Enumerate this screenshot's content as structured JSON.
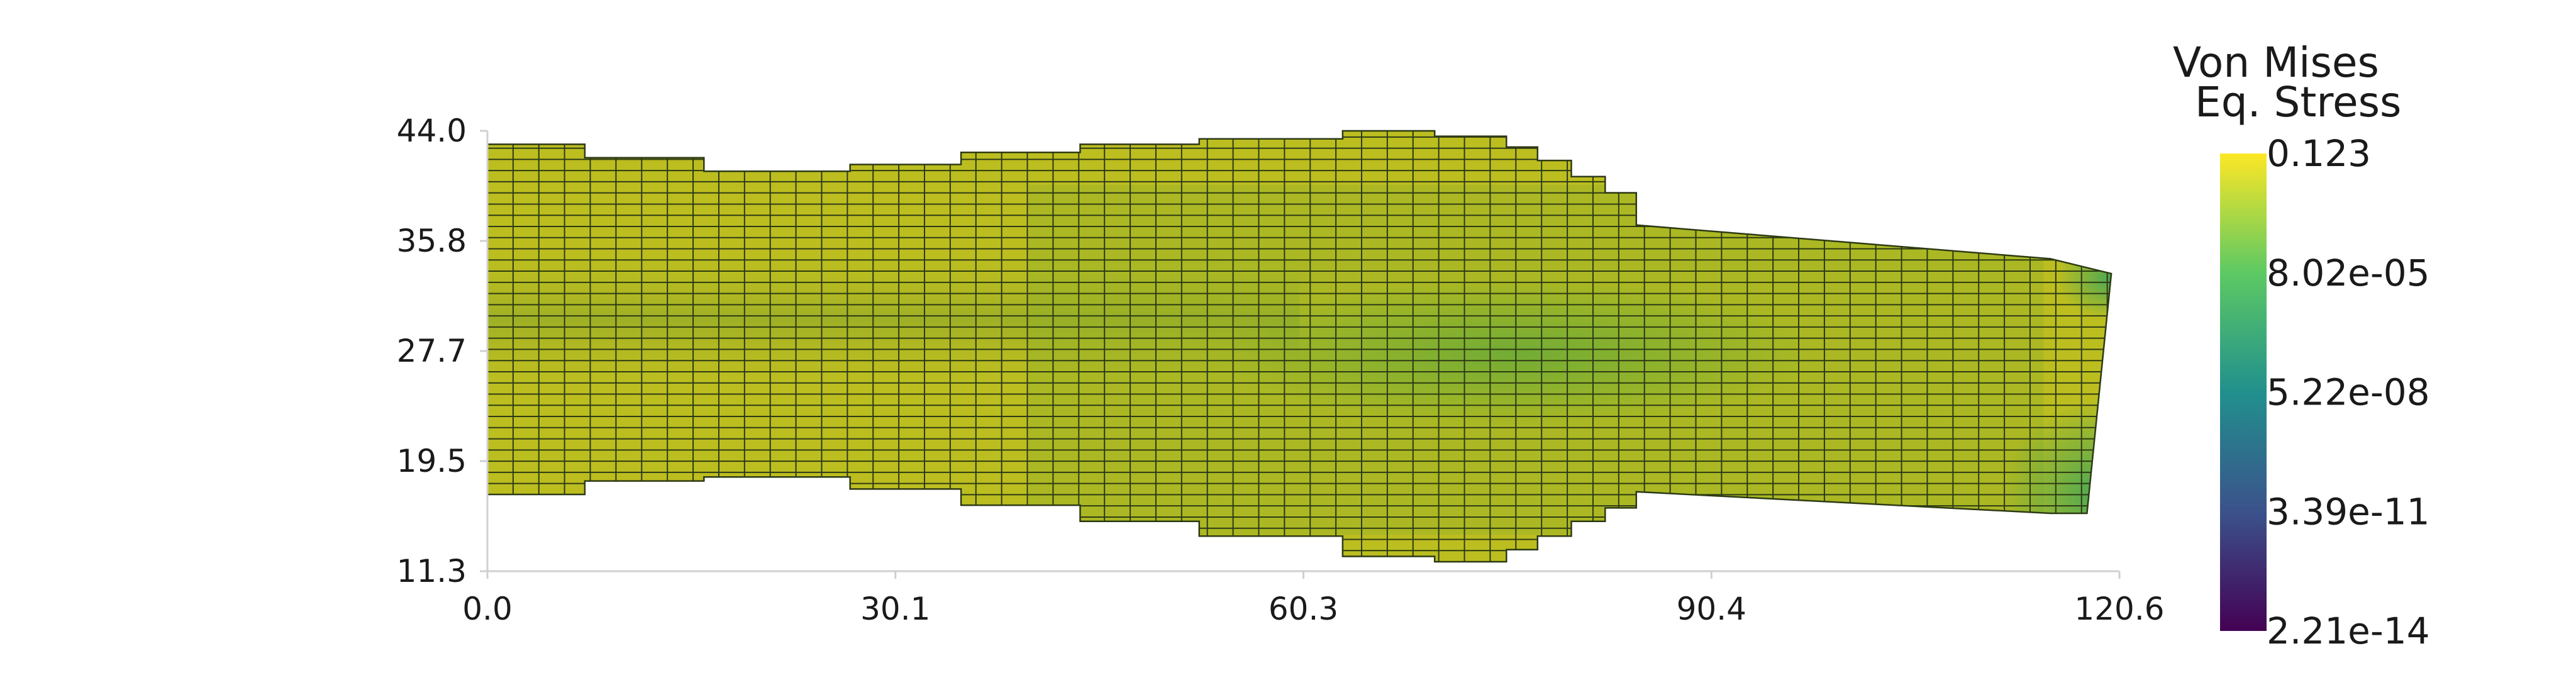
{
  "chart_data": {
    "type": "heatmap",
    "title": "",
    "colorbar": {
      "title_lines": [
        "Von Mises",
        "Eq. Stress"
      ],
      "tick_labels": [
        "0.123",
        "8.02e-05",
        "5.22e-08",
        "3.39e-11",
        "2.21e-14"
      ],
      "scale": "log",
      "colormap": [
        "#440154",
        "#3b528b",
        "#21908d",
        "#5dc963",
        "#fde725"
      ]
    },
    "x_axis": {
      "ticks": [
        "0.0",
        "30.1",
        "60.3",
        "90.4",
        "120.6"
      ],
      "range": [
        0.0,
        120.6
      ]
    },
    "y_axis": {
      "ticks": [
        "11.3",
        "19.5",
        "27.7",
        "35.8",
        "44.0"
      ],
      "range": [
        11.3,
        44.0
      ]
    },
    "mesh": {
      "element_width": 1.9,
      "element_height": 0.83,
      "outline_color": "#2d3a14",
      "segments": [
        {
          "x0": 0.0,
          "x1": 7.2,
          "y_bottom": 17.0,
          "y_top": 43.0
        },
        {
          "x0": 7.2,
          "x1": 16.0,
          "y_bottom": 18.0,
          "y_top": 42.0
        },
        {
          "x0": 16.0,
          "x1": 26.8,
          "y_bottom": 18.3,
          "y_top": 41.0
        },
        {
          "x0": 26.8,
          "x1": 35.0,
          "y_bottom": 17.4,
          "y_top": 41.5
        },
        {
          "x0": 35.0,
          "x1": 43.8,
          "y_bottom": 16.2,
          "y_top": 42.4
        },
        {
          "x0": 43.8,
          "x1": 52.6,
          "y_bottom": 15.0,
          "y_top": 43.0
        },
        {
          "x0": 52.6,
          "x1": 63.2,
          "y_bottom": 13.9,
          "y_top": 43.4
        },
        {
          "x0": 63.2,
          "x1": 70.0,
          "y_bottom": 12.4,
          "y_top": 44.0
        },
        {
          "x0": 70.0,
          "x1": 75.3,
          "y_bottom": 12.0,
          "y_top": 43.6
        },
        {
          "x0": 75.3,
          "x1": 77.6,
          "y_bottom": 12.9,
          "y_top": 42.8
        },
        {
          "x0": 77.6,
          "x1": 80.1,
          "y_bottom": 13.9,
          "y_top": 41.8
        },
        {
          "x0": 80.1,
          "x1": 82.6,
          "y_bottom": 15.0,
          "y_top": 40.6
        },
        {
          "x0": 82.6,
          "x1": 84.9,
          "y_bottom": 16.0,
          "y_top": 39.4
        }
      ],
      "tail": {
        "x_start": 84.9,
        "x_end": 115.5,
        "y_top_start": 37.0,
        "y_top_end": 34.5,
        "y_bottom_start": 17.2,
        "y_bottom_end": 15.6,
        "cap": [
          {
            "x": 115.5,
            "y": 34.5
          },
          {
            "x": 120.0,
            "y": 33.4
          },
          {
            "x": 118.2,
            "y": 15.6
          },
          {
            "x": 115.5,
            "y": 15.6
          }
        ]
      }
    }
  }
}
